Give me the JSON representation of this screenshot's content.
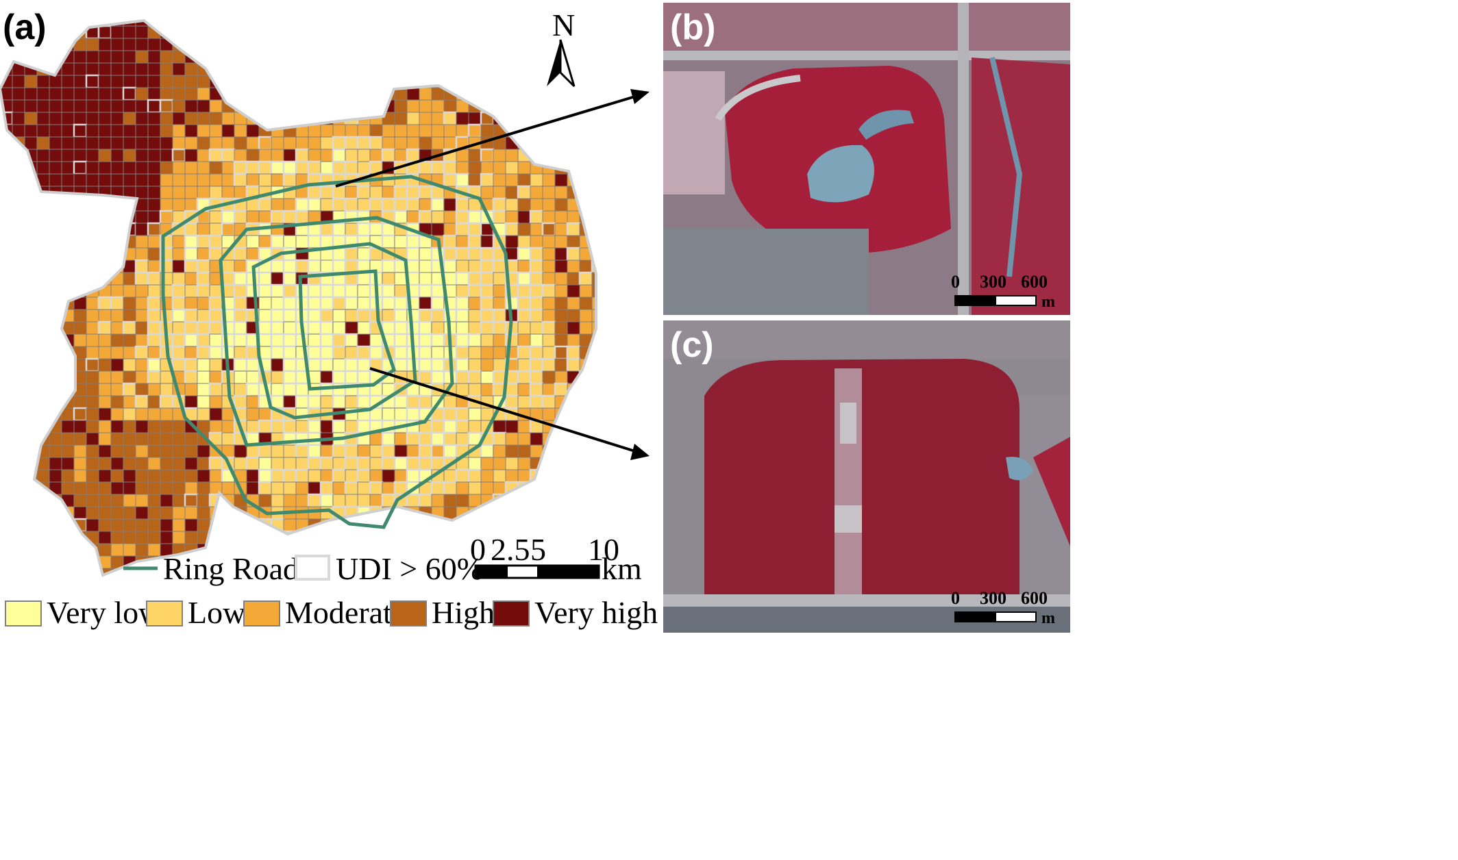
{
  "panels": {
    "a": "(a)",
    "b": "(b)",
    "c": "(c)"
  },
  "north_arrow": {
    "label": "N"
  },
  "legend": {
    "ring_road": "Ring Road",
    "udi": "UDI > 60%",
    "classes": [
      {
        "label": "Very low",
        "color": "#ffff99"
      },
      {
        "label": "Low",
        "color": "#fdd465"
      },
      {
        "label": "Moderate",
        "color": "#f4a838"
      },
      {
        "label": "High",
        "color": "#b8651a"
      },
      {
        "label": "Very high",
        "color": "#740c0c"
      }
    ]
  },
  "scale_main": {
    "ticks": [
      "0",
      "2.5",
      "5",
      "10"
    ],
    "unit": "km"
  },
  "scale_b": {
    "ticks": [
      "0",
      "300",
      "600"
    ],
    "unit": "m"
  },
  "scale_c": {
    "ticks": [
      "0",
      "300",
      "600"
    ],
    "unit": "m"
  },
  "colors": {
    "ring_road": "#3f8a6e",
    "udi_outline": "#d9d9d9",
    "grid_line": "#808080",
    "vegetation": "#a8203a",
    "urban": "#9a9aa0",
    "water": "#7aa0b8"
  }
}
